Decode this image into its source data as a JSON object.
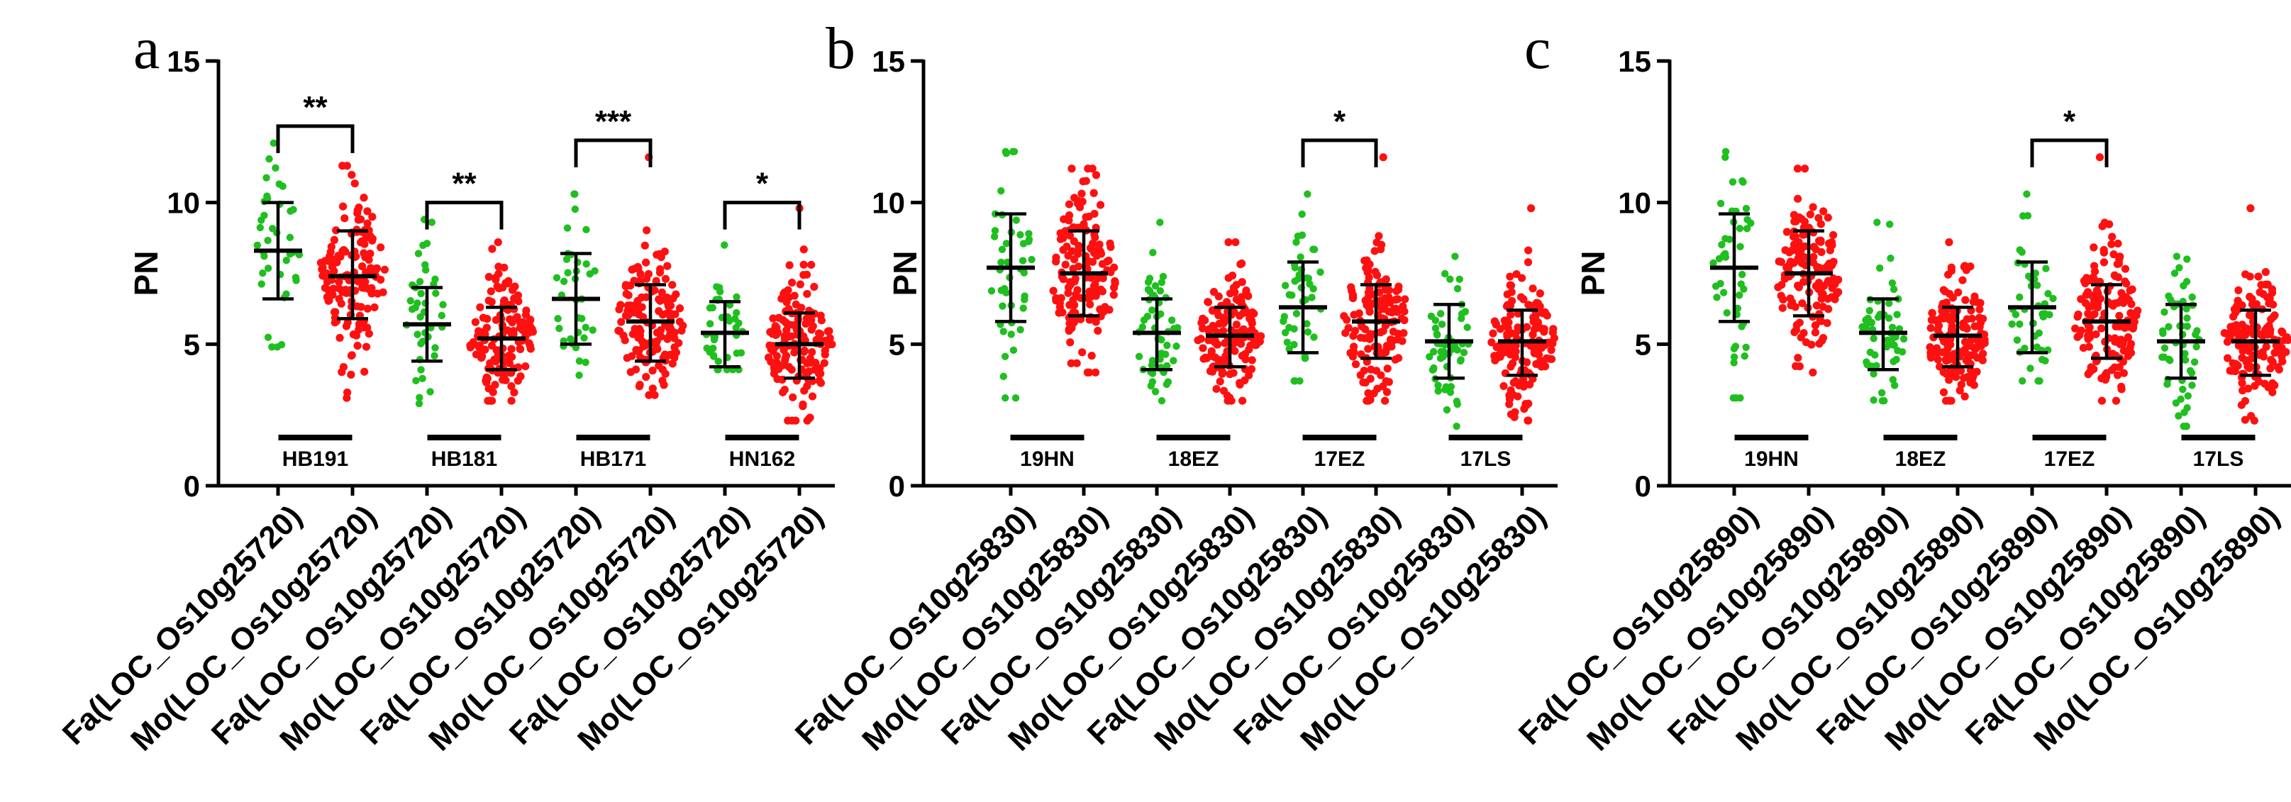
{
  "colors": {
    "Fa": "#1fbf1f",
    "Mo": "#ff1010"
  },
  "chart_data": [
    {
      "type": "scatter",
      "panel_label": "a",
      "ylabel": "PN",
      "ylim": [
        0,
        15
      ],
      "yticks": [
        0,
        5,
        10,
        15
      ],
      "categories": [
        "Fa(LOC_Os10g25720)",
        "Mo(LOC_Os10g25720)",
        "Fa(LOC_Os10g25720)",
        "Mo(LOC_Os10g25720)",
        "Fa(LOC_Os10g25720)",
        "Mo(LOC_Os10g25720)",
        "Fa(LOC_Os10g25720)",
        "Mo(LOC_Os10g25720)"
      ],
      "groups": [
        "HB191",
        "HB181",
        "HB171",
        "HN162"
      ],
      "series": [
        {
          "name": "Fa",
          "group": "HB191",
          "mean": 8.3,
          "sd_low": 6.6,
          "sd_high": 10.0,
          "min": 4.9,
          "max": 12.1,
          "n": 38
        },
        {
          "name": "Mo",
          "group": "HB191",
          "mean": 7.4,
          "sd_low": 5.9,
          "sd_high": 9.0,
          "min": 3.1,
          "max": 11.3,
          "n": 150
        },
        {
          "name": "Fa",
          "group": "HB181",
          "mean": 5.7,
          "sd_low": 4.4,
          "sd_high": 7.0,
          "min": 2.9,
          "max": 9.4,
          "n": 40
        },
        {
          "name": "Mo",
          "group": "HB181",
          "mean": 5.2,
          "sd_low": 4.1,
          "sd_high": 6.3,
          "min": 3.0,
          "max": 8.6,
          "n": 150
        },
        {
          "name": "Fa",
          "group": "HB171",
          "mean": 6.6,
          "sd_low": 5.0,
          "sd_high": 8.2,
          "min": 3.9,
          "max": 10.3,
          "n": 36
        },
        {
          "name": "Mo",
          "group": "HB171",
          "mean": 5.8,
          "sd_low": 4.4,
          "sd_high": 7.1,
          "min": 3.2,
          "max": 11.6,
          "n": 150
        },
        {
          "name": "Fa",
          "group": "HN162",
          "mean": 5.4,
          "sd_low": 4.2,
          "sd_high": 6.5,
          "min": 4.1,
          "max": 8.5,
          "n": 40
        },
        {
          "name": "Mo",
          "group": "HN162",
          "mean": 5.0,
          "sd_low": 3.8,
          "sd_high": 6.1,
          "min": 2.3,
          "max": 9.8,
          "n": 150
        }
      ],
      "significance": [
        {
          "pair": [
            0,
            1
          ],
          "label": "**",
          "y": 12.7
        },
        {
          "pair": [
            2,
            3
          ],
          "label": "**",
          "y": 10.0
        },
        {
          "pair": [
            4,
            5
          ],
          "label": "***",
          "y": 12.2
        },
        {
          "pair": [
            6,
            7
          ],
          "label": "*",
          "y": 10.0
        }
      ]
    },
    {
      "type": "scatter",
      "panel_label": "b",
      "ylabel": "PN",
      "ylim": [
        0,
        15
      ],
      "yticks": [
        0,
        5,
        10,
        15
      ],
      "categories": [
        "Fa(LOC_Os10g25830)",
        "Mo(LOC_Os10g25830)",
        "Fa(LOC_Os10g25830)",
        "Mo(LOC_Os10g25830)",
        "Fa(LOC_Os10g25830)",
        "Mo(LOC_Os10g25830)",
        "Fa(LOC_Os10g25830)",
        "Mo(LOC_Os10g25830)"
      ],
      "groups": [
        "19HN",
        "18EZ",
        "17EZ",
        "17LS"
      ],
      "series": [
        {
          "name": "Fa",
          "group": "19HN",
          "mean": 7.7,
          "sd_low": 5.8,
          "sd_high": 9.6,
          "min": 3.1,
          "max": 11.8,
          "n": 45
        },
        {
          "name": "Mo",
          "group": "19HN",
          "mean": 7.5,
          "sd_low": 6.0,
          "sd_high": 9.0,
          "min": 4.0,
          "max": 11.2,
          "n": 150
        },
        {
          "name": "Fa",
          "group": "18EZ",
          "mean": 5.4,
          "sd_low": 4.1,
          "sd_high": 6.6,
          "min": 3.0,
          "max": 9.3,
          "n": 55
        },
        {
          "name": "Mo",
          "group": "18EZ",
          "mean": 5.3,
          "sd_low": 4.2,
          "sd_high": 6.3,
          "min": 3.0,
          "max": 8.6,
          "n": 150
        },
        {
          "name": "Fa",
          "group": "17EZ",
          "mean": 6.3,
          "sd_low": 4.7,
          "sd_high": 7.9,
          "min": 3.7,
          "max": 10.3,
          "n": 45
        },
        {
          "name": "Mo",
          "group": "17EZ",
          "mean": 5.8,
          "sd_low": 4.5,
          "sd_high": 7.1,
          "min": 3.0,
          "max": 11.6,
          "n": 150
        },
        {
          "name": "Fa",
          "group": "17LS",
          "mean": 5.1,
          "sd_low": 3.8,
          "sd_high": 6.4,
          "min": 2.1,
          "max": 8.1,
          "n": 55
        },
        {
          "name": "Mo",
          "group": "17LS",
          "mean": 5.1,
          "sd_low": 3.9,
          "sd_high": 6.2,
          "min": 2.3,
          "max": 9.8,
          "n": 150
        }
      ],
      "significance": [
        {
          "pair": [
            4,
            5
          ],
          "label": "*",
          "y": 12.2
        }
      ]
    },
    {
      "type": "scatter",
      "panel_label": "c",
      "ylabel": "PN",
      "ylim": [
        0,
        15
      ],
      "yticks": [
        0,
        5,
        10,
        15
      ],
      "categories": [
        "Fa(LOC_Os10g25890)",
        "Mo(LOC_Os10g25890)",
        "Fa(LOC_Os10g25890)",
        "Mo(LOC_Os10g25890)",
        "Fa(LOC_Os10g25890)",
        "Mo(LOC_Os10g25890)",
        "Fa(LOC_Os10g25890)",
        "Mo(LOC_Os10g25890)"
      ],
      "groups": [
        "19HN",
        "18EZ",
        "17EZ",
        "17LS"
      ],
      "series": [
        {
          "name": "Fa",
          "group": "19HN",
          "mean": 7.7,
          "sd_low": 5.8,
          "sd_high": 9.6,
          "min": 3.1,
          "max": 11.8,
          "n": 45
        },
        {
          "name": "Mo",
          "group": "19HN",
          "mean": 7.5,
          "sd_low": 6.0,
          "sd_high": 9.0,
          "min": 4.0,
          "max": 11.2,
          "n": 150
        },
        {
          "name": "Fa",
          "group": "18EZ",
          "mean": 5.4,
          "sd_low": 4.1,
          "sd_high": 6.6,
          "min": 3.0,
          "max": 9.3,
          "n": 55
        },
        {
          "name": "Mo",
          "group": "18EZ",
          "mean": 5.3,
          "sd_low": 4.2,
          "sd_high": 6.3,
          "min": 3.0,
          "max": 8.6,
          "n": 150
        },
        {
          "name": "Fa",
          "group": "17EZ",
          "mean": 6.3,
          "sd_low": 4.7,
          "sd_high": 7.9,
          "min": 3.7,
          "max": 10.3,
          "n": 45
        },
        {
          "name": "Mo",
          "group": "17EZ",
          "mean": 5.8,
          "sd_low": 4.5,
          "sd_high": 7.1,
          "min": 3.0,
          "max": 11.6,
          "n": 150
        },
        {
          "name": "Fa",
          "group": "17LS",
          "mean": 5.1,
          "sd_low": 3.8,
          "sd_high": 6.4,
          "min": 2.1,
          "max": 8.1,
          "n": 55
        },
        {
          "name": "Mo",
          "group": "17LS",
          "mean": 5.1,
          "sd_low": 3.9,
          "sd_high": 6.2,
          "min": 2.3,
          "max": 9.8,
          "n": 150
        }
      ],
      "significance": [
        {
          "pair": [
            4,
            5
          ],
          "label": "*",
          "y": 12.2
        }
      ]
    }
  ]
}
